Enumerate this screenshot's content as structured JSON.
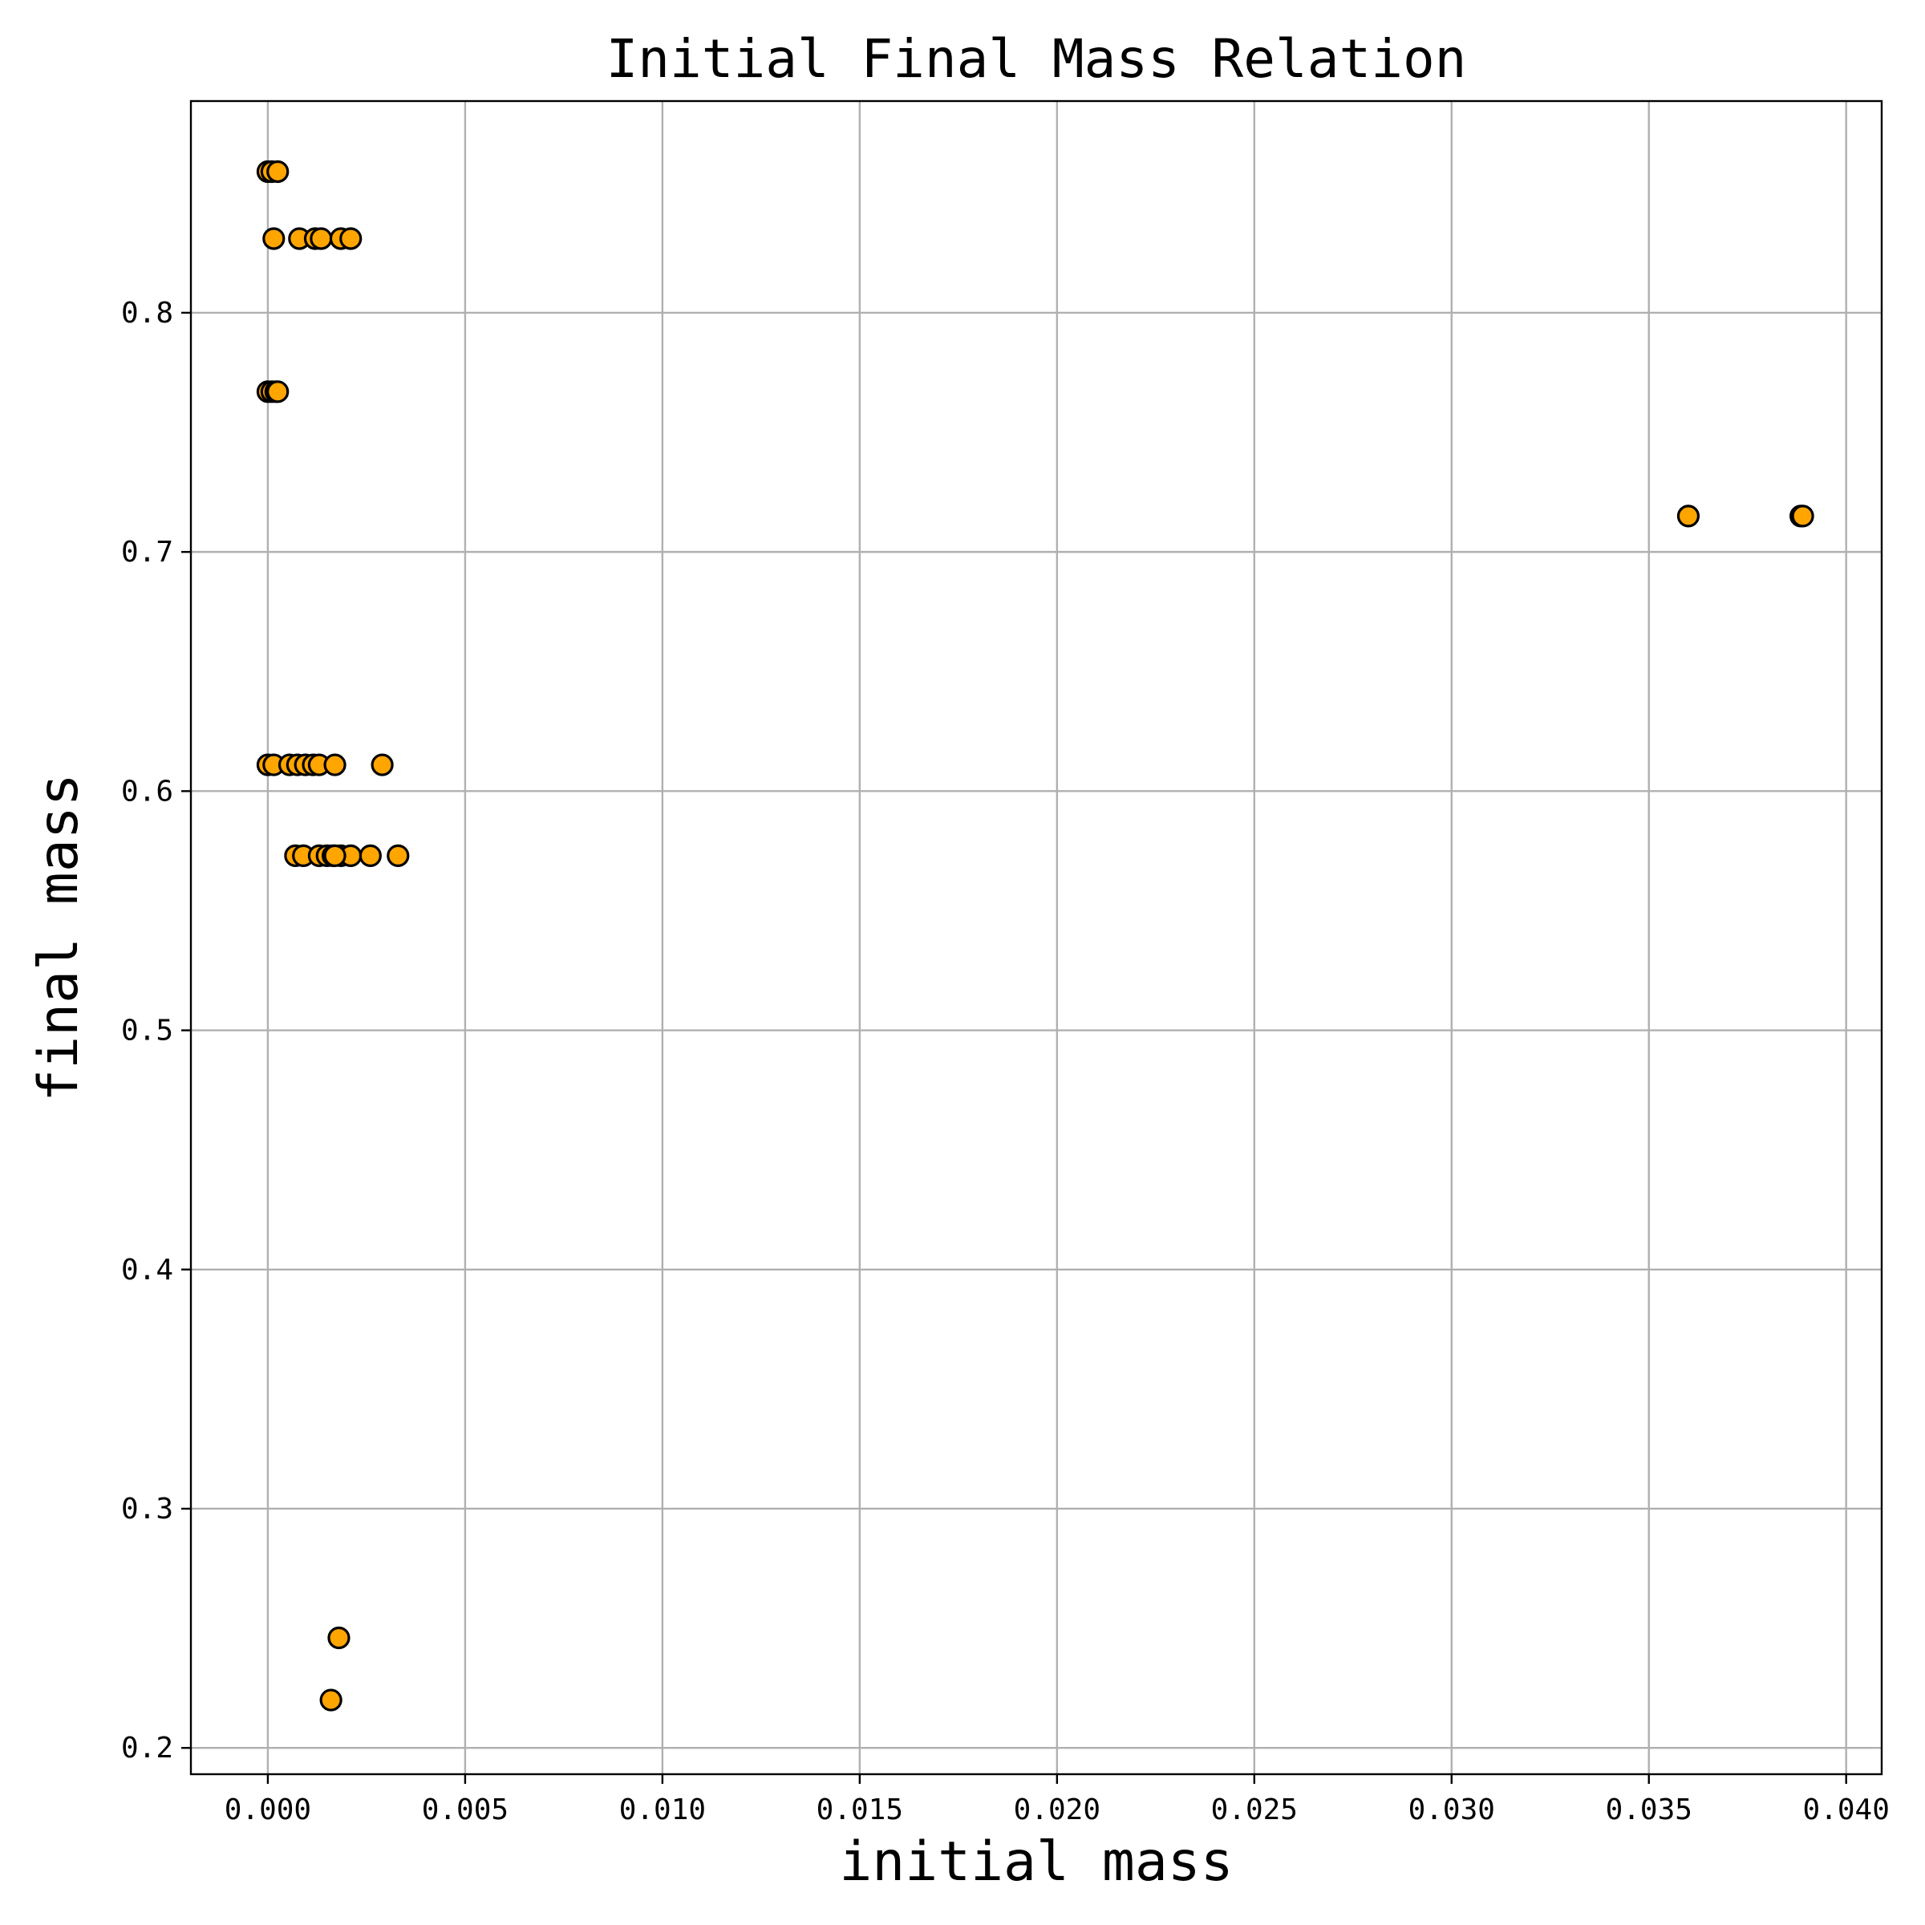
{
  "chart_data": {
    "type": "scatter",
    "title": "Initial Final Mass Relation",
    "xlabel": "initial mass",
    "ylabel": "final mass",
    "xlim": [
      -0.00195,
      0.0409
    ],
    "ylim": [
      0.189,
      0.8885
    ],
    "xticks": [
      0.0,
      0.005,
      0.01,
      0.015,
      0.02,
      0.025,
      0.03,
      0.035,
      0.04
    ],
    "xtick_labels": [
      "0.000",
      "0.005",
      "0.010",
      "0.015",
      "0.020",
      "0.025",
      "0.030",
      "0.035",
      "0.040"
    ],
    "yticks": [
      0.2,
      0.3,
      0.4,
      0.5,
      0.6,
      0.7,
      0.8
    ],
    "ytick_labels": [
      "0.2",
      "0.3",
      "0.4",
      "0.5",
      "0.6",
      "0.7",
      "0.8"
    ],
    "grid": true,
    "marker_color": "#FFA500",
    "marker_edge_color": "#000000",
    "series": [
      {
        "x": [
          0.0,
          0.0001,
          0.00025,
          0.00015,
          0.0008,
          0.0012,
          0.00135,
          0.00185,
          0.0021,
          0.0,
          0.0001,
          0.0002,
          0.00025,
          0.036,
          0.03885,
          0.0389,
          0.0,
          0.00015,
          0.00055,
          0.00075,
          0.00095,
          0.00115,
          0.0013,
          0.0017,
          0.0029,
          0.0007,
          0.0009,
          0.0013,
          0.0015,
          0.00165,
          0.00185,
          0.0021,
          0.0026,
          0.0033,
          0.0018,
          0.0016,
          0.0017
        ],
        "y": [
          0.859,
          0.859,
          0.859,
          0.831,
          0.831,
          0.831,
          0.831,
          0.831,
          0.831,
          0.767,
          0.767,
          0.767,
          0.767,
          0.715,
          0.715,
          0.715,
          0.611,
          0.611,
          0.611,
          0.611,
          0.611,
          0.611,
          0.611,
          0.611,
          0.611,
          0.573,
          0.573,
          0.573,
          0.573,
          0.573,
          0.573,
          0.573,
          0.573,
          0.573,
          0.246,
          0.22,
          0.573
        ]
      }
    ]
  }
}
